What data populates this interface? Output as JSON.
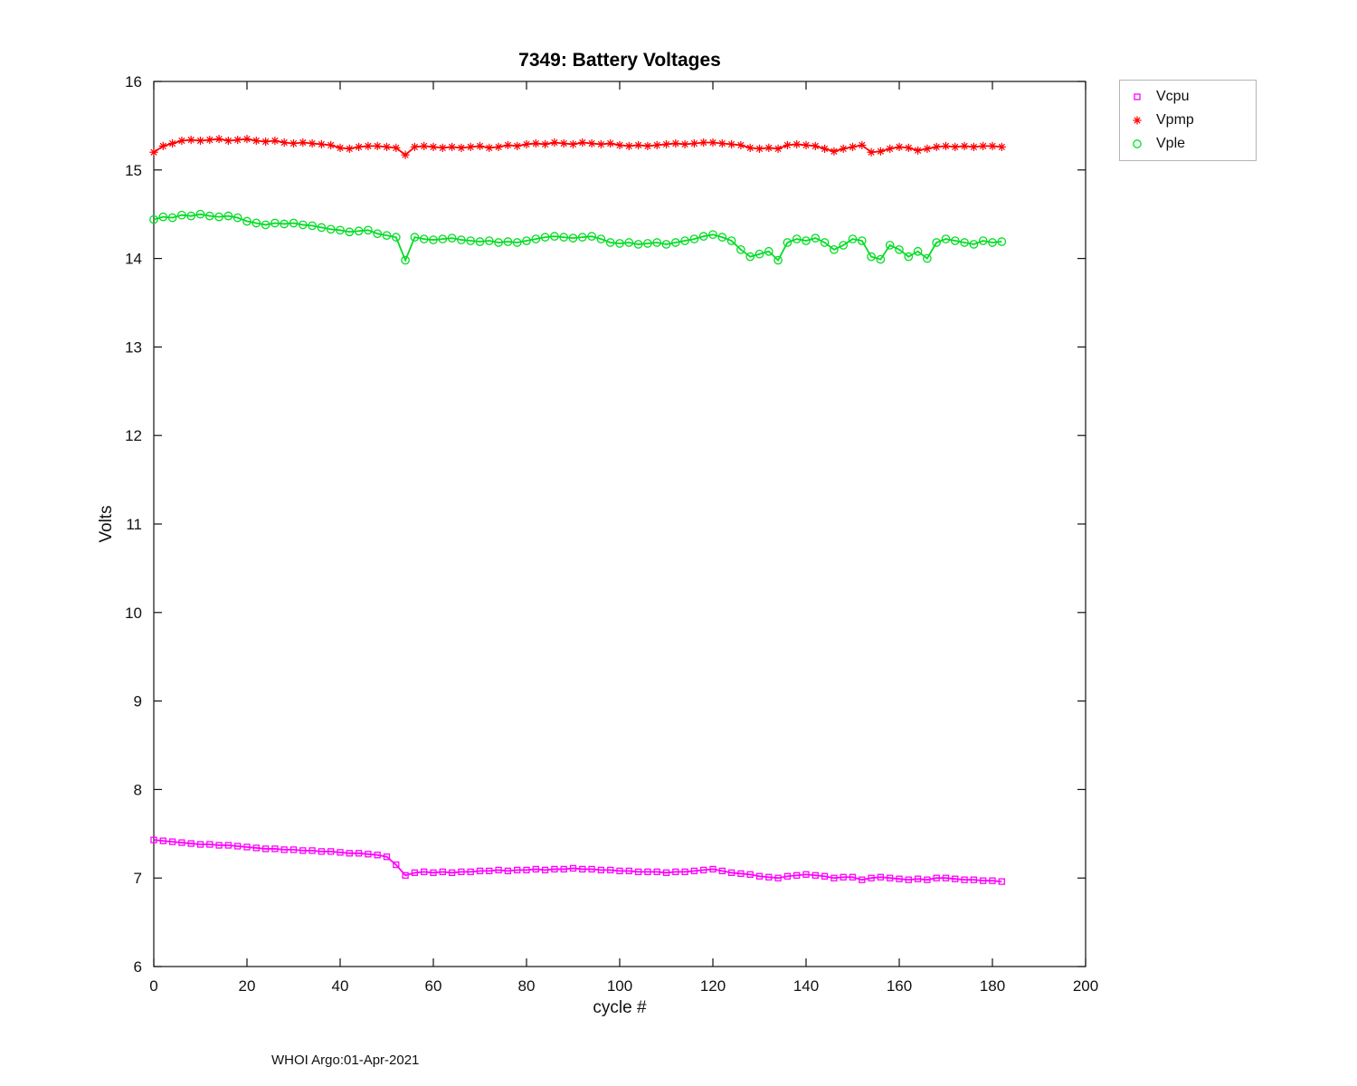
{
  "footer": "WHOI Argo:01-Apr-2021",
  "chart_data": {
    "type": "line",
    "title": "7349: Battery Voltages",
    "xlabel": "cycle #",
    "ylabel": "Volts",
    "xlim": [
      0,
      200
    ],
    "ylim": [
      6,
      16
    ],
    "x_ticks": [
      0,
      20,
      40,
      60,
      80,
      100,
      120,
      140,
      160,
      180,
      200
    ],
    "y_ticks": [
      6,
      7,
      8,
      9,
      10,
      11,
      12,
      13,
      14,
      15,
      16
    ],
    "grid": false,
    "legend_position": "outside-top-right",
    "x": [
      0,
      2,
      4,
      6,
      8,
      10,
      12,
      14,
      16,
      18,
      20,
      22,
      24,
      26,
      28,
      30,
      32,
      34,
      36,
      38,
      40,
      42,
      44,
      46,
      48,
      50,
      52,
      54,
      56,
      58,
      60,
      62,
      64,
      66,
      68,
      70,
      72,
      74,
      76,
      78,
      80,
      82,
      84,
      86,
      88,
      90,
      92,
      94,
      96,
      98,
      100,
      102,
      104,
      106,
      108,
      110,
      112,
      114,
      116,
      118,
      120,
      122,
      124,
      126,
      128,
      130,
      132,
      134,
      136,
      138,
      140,
      142,
      144,
      146,
      148,
      150,
      152,
      154,
      156,
      158,
      160,
      162,
      164,
      166,
      168,
      170,
      172,
      174,
      176,
      178,
      180,
      182
    ],
    "series": [
      {
        "name": "Vcpu",
        "marker": "square",
        "color": "#ff00ff",
        "values": [
          7.43,
          7.42,
          7.41,
          7.4,
          7.39,
          7.38,
          7.38,
          7.37,
          7.37,
          7.36,
          7.35,
          7.34,
          7.33,
          7.33,
          7.32,
          7.32,
          7.31,
          7.31,
          7.3,
          7.3,
          7.29,
          7.28,
          7.28,
          7.27,
          7.26,
          7.24,
          7.15,
          7.03,
          7.06,
          7.07,
          7.06,
          7.07,
          7.06,
          7.07,
          7.07,
          7.08,
          7.08,
          7.09,
          7.08,
          7.09,
          7.09,
          7.1,
          7.09,
          7.1,
          7.1,
          7.11,
          7.1,
          7.1,
          7.09,
          7.09,
          7.08,
          7.08,
          7.07,
          7.07,
          7.07,
          7.06,
          7.07,
          7.07,
          7.08,
          7.09,
          7.1,
          7.08,
          7.06,
          7.05,
          7.04,
          7.02,
          7.01,
          7.0,
          7.02,
          7.03,
          7.04,
          7.03,
          7.02,
          7.0,
          7.01,
          7.01,
          6.98,
          7.0,
          7.01,
          7.0,
          6.99,
          6.98,
          6.99,
          6.98,
          7.0,
          7.0,
          6.99,
          6.98,
          6.98,
          6.97,
          6.97,
          6.96
        ]
      },
      {
        "name": "Vpmp",
        "marker": "asterisk",
        "color": "#ff0000",
        "values": [
          15.2,
          15.27,
          15.3,
          15.33,
          15.34,
          15.33,
          15.34,
          15.35,
          15.33,
          15.34,
          15.35,
          15.33,
          15.32,
          15.33,
          15.31,
          15.3,
          15.31,
          15.3,
          15.29,
          15.28,
          15.25,
          15.24,
          15.26,
          15.27,
          15.27,
          15.26,
          15.25,
          15.17,
          15.26,
          15.27,
          15.26,
          15.25,
          15.26,
          15.25,
          15.26,
          15.27,
          15.25,
          15.26,
          15.28,
          15.27,
          15.29,
          15.3,
          15.29,
          15.31,
          15.3,
          15.29,
          15.31,
          15.3,
          15.29,
          15.3,
          15.28,
          15.27,
          15.28,
          15.27,
          15.28,
          15.29,
          15.3,
          15.29,
          15.3,
          15.31,
          15.31,
          15.3,
          15.29,
          15.28,
          15.25,
          15.24,
          15.25,
          15.24,
          15.28,
          15.29,
          15.28,
          15.27,
          15.24,
          15.21,
          15.24,
          15.26,
          15.28,
          15.2,
          15.21,
          15.24,
          15.26,
          15.25,
          15.22,
          15.24,
          15.26,
          15.27,
          15.26,
          15.27,
          15.26,
          15.27,
          15.27,
          15.26
        ]
      },
      {
        "name": "Vple",
        "marker": "circle",
        "color": "#00dd22",
        "values": [
          14.44,
          14.47,
          14.46,
          14.49,
          14.48,
          14.5,
          14.48,
          14.47,
          14.48,
          14.46,
          14.42,
          14.4,
          14.38,
          14.4,
          14.39,
          14.4,
          14.38,
          14.37,
          14.35,
          14.33,
          14.32,
          14.3,
          14.31,
          14.32,
          14.28,
          14.26,
          14.24,
          13.98,
          14.24,
          14.22,
          14.21,
          14.22,
          14.23,
          14.21,
          14.2,
          14.19,
          14.2,
          14.18,
          14.19,
          14.18,
          14.2,
          14.22,
          14.24,
          14.25,
          14.24,
          14.23,
          14.24,
          14.25,
          14.22,
          14.18,
          14.17,
          14.18,
          14.16,
          14.17,
          14.18,
          14.16,
          14.18,
          14.2,
          14.22,
          14.25,
          14.27,
          14.24,
          14.2,
          14.1,
          14.02,
          14.05,
          14.08,
          13.98,
          14.18,
          14.22,
          14.2,
          14.23,
          14.18,
          14.1,
          14.15,
          14.22,
          14.2,
          14.02,
          13.99,
          14.15,
          14.1,
          14.02,
          14.08,
          14.0,
          14.18,
          14.22,
          14.2,
          14.18,
          14.16,
          14.2,
          14.18,
          14.19
        ]
      }
    ]
  }
}
